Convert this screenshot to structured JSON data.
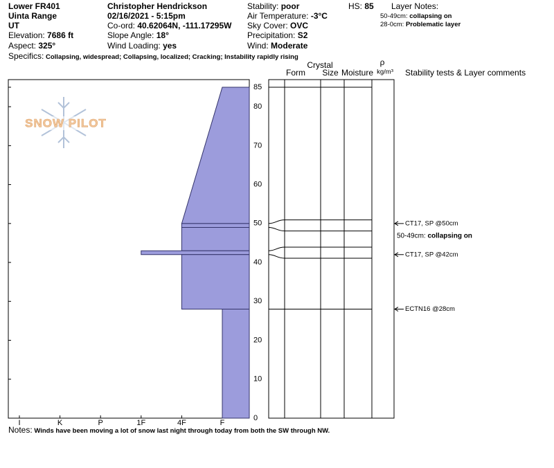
{
  "header": {
    "left": [
      {
        "value": "Lower FR401"
      },
      {
        "value": "Uinta Range"
      },
      {
        "value": "UT"
      },
      {
        "label": "Elevation:",
        "value": "7686 ft"
      },
      {
        "label": "Aspect:",
        "value": "325°"
      }
    ],
    "middle": [
      {
        "value": "Christopher Hendrickson"
      },
      {
        "value": "02/16/2021 - 5:15pm"
      },
      {
        "label": "Co-ord:",
        "value": "40.62064N, -111.17295W"
      },
      {
        "label": "Slope Angle:",
        "value": "18°"
      },
      {
        "label": "Wind Loading:",
        "value": "yes"
      }
    ],
    "right": [
      {
        "label": "Stability:",
        "value": "poor"
      },
      {
        "label": "Air Temperature:",
        "value": "-3°C"
      },
      {
        "label": "Sky Cover:",
        "value": "OVC"
      },
      {
        "label": "Precipitation:",
        "value": "S2"
      },
      {
        "label": "Wind:",
        "value": "Moderate"
      }
    ],
    "hs": {
      "label": "HS:",
      "value": "85"
    },
    "layer_notes": {
      "title": "Layer Notes:",
      "items": [
        {
          "label": "50-49cm:",
          "value": "collapsing on"
        },
        {
          "label": "28-0cm:",
          "value": "Problematic layer"
        }
      ]
    },
    "specifics": {
      "label": "Specifics:",
      "value": "Collapsing, widespread; Collapsing, localized; Cracking; Instability rapidly rising"
    }
  },
  "logo": "SNOW PILOT",
  "profile": {
    "depth_lim": [
      0,
      85
    ],
    "depth_ticks": [
      0,
      10,
      20,
      30,
      40,
      50,
      60,
      70,
      80,
      85
    ],
    "hardness_categories": [
      "I",
      "K",
      "P",
      "1F",
      "4F",
      "F"
    ],
    "color": "#9c9cdc",
    "layers": [
      {
        "top": 85,
        "bottom": 50,
        "hardness": "F",
        "hardness_bottom": "4F"
      },
      {
        "top": 50,
        "bottom": 49,
        "hardness": "4F"
      },
      {
        "top": 49,
        "bottom": 43,
        "hardness": "4F"
      },
      {
        "top": 43,
        "bottom": 42,
        "hardness": "1F"
      },
      {
        "top": 42,
        "bottom": 28,
        "hardness": "4F"
      },
      {
        "top": 28,
        "bottom": 0,
        "hardness": "F"
      }
    ]
  },
  "stratigraphy": {
    "columns": {
      "crystal": "Crystal",
      "form": "Form",
      "size": "Size",
      "moisture": "Moisture",
      "rho": "ρ",
      "rho_unit": "kg/m³",
      "comments": "Stability tests & Layer comments"
    },
    "tests": [
      {
        "depth": 50,
        "label": "CT17, SP @50cm"
      },
      {
        "depth": 42,
        "label": "CT17, SP @42cm"
      },
      {
        "depth": 28,
        "label": "ECTN16 @28cm"
      }
    ],
    "comment": {
      "depth": 49,
      "label": "50-49cm:",
      "value": "collapsing on"
    }
  },
  "notes": {
    "label": "Notes:",
    "value": "Winds have been moving a lot of snow last night through today from both the SW through NW."
  }
}
